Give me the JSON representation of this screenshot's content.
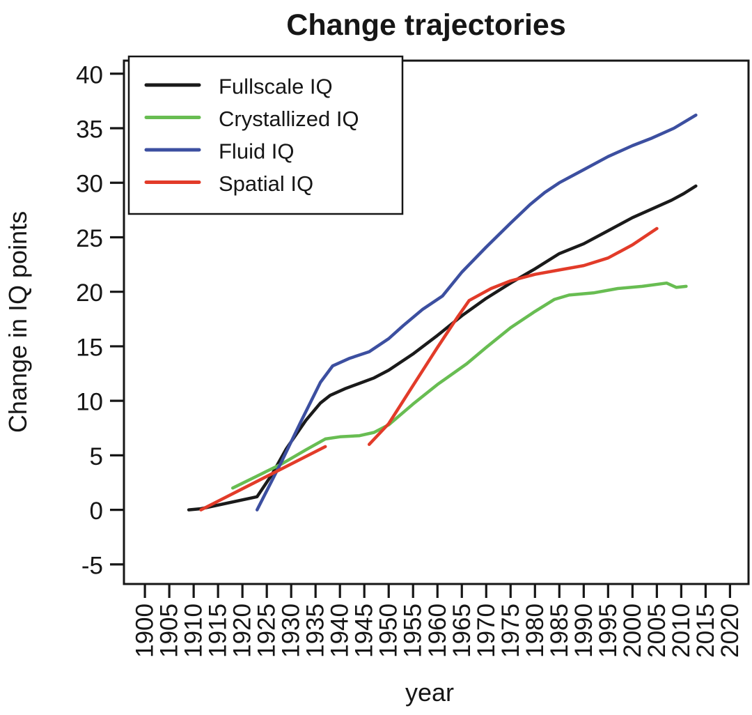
{
  "chart_data": {
    "type": "line",
    "title": "Change trajectories",
    "xlabel": "year",
    "ylabel": "Change in IQ points",
    "xlim": [
      1895.7,
      2023.8
    ],
    "ylim": [
      -6.8,
      41.2
    ],
    "xticks": [
      1900,
      1905,
      1910,
      1915,
      1920,
      1925,
      1930,
      1935,
      1940,
      1945,
      1950,
      1955,
      1960,
      1965,
      1970,
      1975,
      1980,
      1985,
      1990,
      1995,
      2000,
      2005,
      2010,
      2015,
      2020
    ],
    "yticks": [
      -5,
      0,
      5,
      10,
      15,
      20,
      25,
      30,
      35,
      40
    ],
    "grid": false,
    "legend_position": "top-left",
    "axis_color": "#161616",
    "series": [
      {
        "name": "Fullscale IQ",
        "color": "#1a1a1a",
        "segments": [
          [
            [
              1909,
              0
            ],
            [
              1911.5,
              0.1
            ],
            [
              1923,
              1.2
            ],
            [
              1926,
              3.2
            ],
            [
              1929,
              5.6
            ],
            [
              1933,
              8.2
            ],
            [
              1936,
              9.8
            ],
            [
              1938,
              10.5
            ],
            [
              1941,
              11.1
            ],
            [
              1944,
              11.6
            ],
            [
              1947,
              12.1
            ],
            [
              1950,
              12.8
            ],
            [
              1955,
              14.3
            ],
            [
              1960,
              16.0
            ],
            [
              1965,
              17.8
            ],
            [
              1970,
              19.4
            ],
            [
              1975,
              20.8
            ],
            [
              1980,
              22.1
            ],
            [
              1985,
              23.5
            ],
            [
              1990,
              24.4
            ],
            [
              1995,
              25.6
            ],
            [
              2000,
              26.8
            ],
            [
              2004,
              27.6
            ],
            [
              2008,
              28.4
            ],
            [
              2010.5,
              29.0
            ],
            [
              2013,
              29.7
            ]
          ]
        ]
      },
      {
        "name": "Crystallized IQ",
        "color": "#68bd52",
        "segments": [
          [
            [
              1918,
              2.0
            ],
            [
              1923,
              3.1
            ],
            [
              1928,
              4.2
            ],
            [
              1933,
              5.5
            ],
            [
              1937,
              6.5
            ],
            [
              1940,
              6.7
            ],
            [
              1944,
              6.8
            ],
            [
              1947,
              7.1
            ],
            [
              1950,
              7.8
            ],
            [
              1955,
              9.7
            ],
            [
              1960,
              11.5
            ],
            [
              1966,
              13.4
            ],
            [
              1970,
              14.9
            ],
            [
              1975,
              16.7
            ],
            [
              1980,
              18.2
            ],
            [
              1984,
              19.3
            ],
            [
              1987,
              19.7
            ],
            [
              1992,
              19.9
            ],
            [
              1997,
              20.3
            ],
            [
              2002,
              20.5
            ],
            [
              2007,
              20.8
            ],
            [
              2009,
              20.4
            ],
            [
              2011,
              20.5
            ]
          ]
        ]
      },
      {
        "name": "Fluid IQ",
        "color": "#3c4fa0",
        "segments": [
          [
            [
              1923,
              0
            ],
            [
              1928,
              4.4
            ],
            [
              1932,
              8.1
            ],
            [
              1936,
              11.7
            ],
            [
              1938.5,
              13.2
            ],
            [
              1942,
              13.9
            ],
            [
              1946,
              14.5
            ],
            [
              1950,
              15.7
            ],
            [
              1953,
              16.9
            ],
            [
              1957,
              18.4
            ],
            [
              1961,
              19.6
            ],
            [
              1965,
              21.8
            ],
            [
              1970,
              24.1
            ],
            [
              1975,
              26.3
            ],
            [
              1979,
              28.0
            ],
            [
              1982,
              29.1
            ],
            [
              1985,
              30.0
            ],
            [
              1990,
              31.2
            ],
            [
              1995,
              32.4
            ],
            [
              2000,
              33.4
            ],
            [
              2004,
              34.1
            ],
            [
              2008.5,
              35.0
            ],
            [
              2013,
              36.2
            ]
          ]
        ]
      },
      {
        "name": "Spatial IQ",
        "color": "#e23b29",
        "segments": [
          [
            [
              1911.5,
              0
            ],
            [
              1937,
              5.8
            ]
          ],
          [
            [
              1946,
              6.0
            ],
            [
              1950,
              7.9
            ],
            [
              1955,
              11.4
            ],
            [
              1960,
              14.9
            ],
            [
              1964,
              17.6
            ],
            [
              1966.5,
              19.2
            ],
            [
              1971,
              20.3
            ],
            [
              1975,
              21.0
            ],
            [
              1980,
              21.6
            ],
            [
              1985,
              22.0
            ],
            [
              1990,
              22.4
            ],
            [
              1995,
              23.1
            ],
            [
              2000,
              24.3
            ],
            [
              2005,
              25.8
            ]
          ]
        ]
      }
    ]
  }
}
